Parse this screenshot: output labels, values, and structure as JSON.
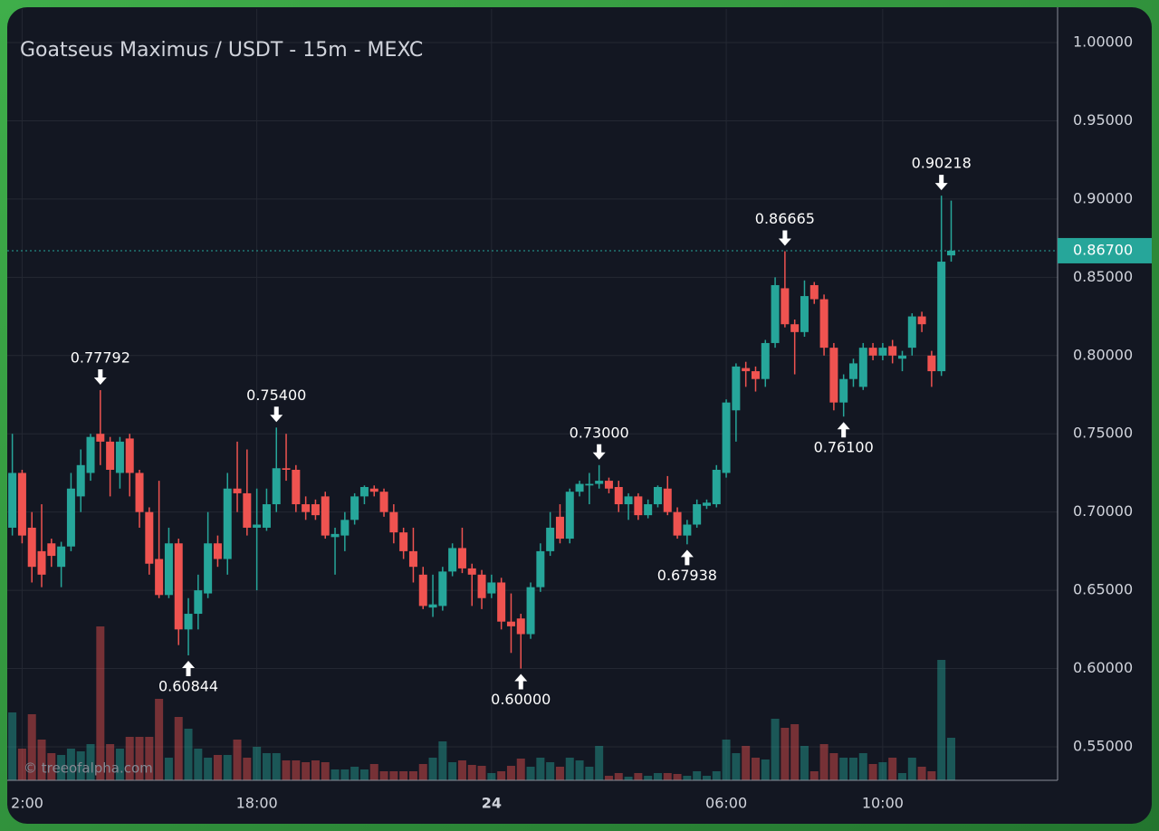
{
  "chart_data": {
    "type": "candlestick",
    "title": "Goatseus Maximus / USDT - 15m - MEXC",
    "watermark": "© treeofalpha.com",
    "x": [
      11.75,
      12,
      12.25,
      12.5,
      12.75,
      13,
      13.25,
      13.5,
      13.75,
      14,
      14.25,
      14.5,
      14.75,
      15,
      15.25,
      15.5,
      15.75,
      16,
      16.25,
      16.5,
      16.75,
      17,
      17.25,
      17.5,
      17.75,
      18,
      18.25,
      18.5,
      18.75,
      19,
      19.25,
      19.5,
      19.75,
      20,
      20.25,
      20.5,
      20.75,
      21,
      21.25,
      21.5,
      21.75,
      22,
      22.25,
      22.5,
      22.75,
      23,
      23.25,
      23.5,
      23.75,
      24,
      24.25,
      24.5,
      24.75,
      25,
      25.25,
      25.5,
      25.75,
      26,
      26.25,
      26.5,
      26.75,
      27,
      27.25,
      27.5,
      27.75,
      28,
      28.25,
      28.5,
      28.75,
      29,
      29.25,
      29.5,
      29.75,
      30,
      30.25,
      30.5,
      30.75,
      31,
      31.25,
      31.5,
      31.75,
      32,
      32.25,
      32.5,
      32.75,
      33,
      33.25,
      33.5,
      33.75,
      34,
      34.25,
      34.5,
      34.75,
      35,
      35.25,
      35.5,
      35.75
    ],
    "open": [
      0.69,
      0.725,
      0.69,
      0.675,
      0.68,
      0.665,
      0.678,
      0.71,
      0.725,
      0.75,
      0.745,
      0.725,
      0.747,
      0.725,
      0.7,
      0.67,
      0.647,
      0.68,
      0.625,
      0.635,
      0.648,
      0.68,
      0.67,
      0.715,
      0.712,
      0.69,
      0.69,
      0.705,
      0.728,
      0.727,
      0.705,
      0.705,
      0.71,
      0.684,
      0.685,
      0.695,
      0.71,
      0.715,
      0.713,
      0.7,
      0.687,
      0.675,
      0.66,
      0.639,
      0.64,
      0.662,
      0.677,
      0.664,
      0.66,
      0.648,
      0.655,
      0.63,
      0.632,
      0.622,
      0.652,
      0.675,
      0.697,
      0.683,
      0.713,
      0.717,
      0.718,
      0.72,
      0.716,
      0.705,
      0.71,
      0.698,
      0.705,
      0.715,
      0.7,
      0.685,
      0.692,
      0.704,
      0.705,
      0.725,
      0.765,
      0.792,
      0.79,
      0.785,
      0.808,
      0.843,
      0.82,
      0.815,
      0.845,
      0.836,
      0.805,
      0.77,
      0.785,
      0.78,
      0.805,
      0.8,
      0.806,
      0.798,
      0.805,
      0.825,
      0.8,
      0.79,
      0.864
    ],
    "high": [
      0.75,
      0.727,
      0.7,
      0.705,
      0.683,
      0.681,
      0.725,
      0.74,
      0.75,
      0.77792,
      0.748,
      0.748,
      0.75,
      0.727,
      0.703,
      0.72,
      0.69,
      0.683,
      0.645,
      0.66,
      0.7,
      0.685,
      0.725,
      0.745,
      0.74,
      0.715,
      0.715,
      0.754,
      0.75,
      0.73,
      0.71,
      0.708,
      0.713,
      0.69,
      0.7,
      0.712,
      0.717,
      0.717,
      0.715,
      0.705,
      0.69,
      0.69,
      0.665,
      0.66,
      0.665,
      0.68,
      0.69,
      0.667,
      0.663,
      0.66,
      0.658,
      0.648,
      0.635,
      0.655,
      0.68,
      0.7,
      0.705,
      0.715,
      0.72,
      0.725,
      0.73,
      0.722,
      0.72,
      0.712,
      0.712,
      0.708,
      0.717,
      0.723,
      0.703,
      0.695,
      0.708,
      0.708,
      0.73,
      0.772,
      0.795,
      0.796,
      0.793,
      0.81,
      0.85,
      0.86665,
      0.823,
      0.848,
      0.847,
      0.839,
      0.808,
      0.788,
      0.798,
      0.808,
      0.808,
      0.808,
      0.81,
      0.803,
      0.827,
      0.828,
      0.803,
      0.90218,
      0.899
    ],
    "low": [
      0.685,
      0.68,
      0.655,
      0.652,
      0.665,
      0.652,
      0.675,
      0.7,
      0.72,
      0.73,
      0.71,
      0.715,
      0.71,
      0.69,
      0.66,
      0.645,
      0.645,
      0.615,
      0.60844,
      0.625,
      0.645,
      0.665,
      0.66,
      0.7,
      0.685,
      0.65,
      0.688,
      0.7,
      0.72,
      0.7,
      0.695,
      0.695,
      0.683,
      0.66,
      0.675,
      0.692,
      0.705,
      0.71,
      0.697,
      0.68,
      0.67,
      0.655,
      0.638,
      0.633,
      0.637,
      0.659,
      0.661,
      0.64,
      0.638,
      0.645,
      0.625,
      0.61,
      0.6,
      0.619,
      0.649,
      0.672,
      0.68,
      0.68,
      0.71,
      0.705,
      0.715,
      0.712,
      0.7,
      0.695,
      0.695,
      0.696,
      0.703,
      0.698,
      0.683,
      0.67938,
      0.69,
      0.702,
      0.703,
      0.722,
      0.745,
      0.78,
      0.777,
      0.78,
      0.805,
      0.818,
      0.788,
      0.812,
      0.833,
      0.8,
      0.765,
      0.761,
      0.78,
      0.778,
      0.797,
      0.797,
      0.795,
      0.79,
      0.8,
      0.815,
      0.78,
      0.787,
      0.86
    ],
    "close": [
      0.725,
      0.685,
      0.665,
      0.66,
      0.672,
      0.678,
      0.715,
      0.73,
      0.748,
      0.745,
      0.727,
      0.745,
      0.725,
      0.7,
      0.667,
      0.647,
      0.68,
      0.625,
      0.635,
      0.65,
      0.68,
      0.67,
      0.715,
      0.712,
      0.69,
      0.692,
      0.705,
      0.728,
      0.727,
      0.705,
      0.7,
      0.698,
      0.685,
      0.686,
      0.695,
      0.71,
      0.716,
      0.713,
      0.7,
      0.687,
      0.675,
      0.665,
      0.64,
      0.641,
      0.662,
      0.677,
      0.664,
      0.66,
      0.645,
      0.655,
      0.63,
      0.627,
      0.622,
      0.652,
      0.675,
      0.69,
      0.683,
      0.713,
      0.718,
      0.718,
      0.72,
      0.715,
      0.705,
      0.71,
      0.698,
      0.705,
      0.716,
      0.7,
      0.685,
      0.692,
      0.705,
      0.706,
      0.727,
      0.77,
      0.793,
      0.79,
      0.785,
      0.808,
      0.845,
      0.82,
      0.815,
      0.838,
      0.836,
      0.805,
      0.77,
      0.785,
      0.795,
      0.805,
      0.8,
      0.805,
      0.8,
      0.8,
      0.825,
      0.82,
      0.79,
      0.86,
      0.867
    ],
    "volume": [
      75,
      35,
      73,
      45,
      30,
      28,
      35,
      32,
      40,
      170,
      40,
      35,
      48,
      48,
      48,
      90,
      25,
      70,
      57,
      35,
      25,
      28,
      28,
      45,
      25,
      37,
      30,
      30,
      22,
      22,
      20,
      22,
      20,
      12,
      12,
      15,
      12,
      18,
      10,
      10,
      10,
      10,
      18,
      25,
      43,
      20,
      22,
      17,
      16,
      8,
      10,
      16,
      24,
      15,
      25,
      20,
      15,
      25,
      22,
      15,
      38,
      5,
      8,
      4,
      8,
      5,
      8,
      8,
      7,
      5,
      10,
      5,
      10,
      45,
      30,
      38,
      25,
      23,
      68,
      58,
      62,
      38,
      10,
      40,
      30,
      25,
      25,
      30,
      18,
      20,
      25,
      8,
      25,
      15,
      10,
      133,
      47
    ],
    "up_color": "#26a69a",
    "down_color": "#ef5350",
    "grid": true,
    "xlim": [
      11.62,
      38.47
    ],
    "xticks": [
      {
        "value": 12,
        "label": "2:00"
      },
      {
        "value": 18,
        "label": "18:00"
      },
      {
        "value": 24,
        "label": "24"
      },
      {
        "value": 30,
        "label": "06:00"
      },
      {
        "value": 34,
        "label": "10:00"
      }
    ],
    "ylim": [
      0.5286,
      1.0214
    ],
    "yticks": [
      {
        "value": 0.55,
        "label": "0.55000"
      },
      {
        "value": 0.6,
        "label": "0.60000"
      },
      {
        "value": 0.65,
        "label": "0.65000"
      },
      {
        "value": 0.7,
        "label": "0.70000"
      },
      {
        "value": 0.75,
        "label": "0.75000"
      },
      {
        "value": 0.8,
        "label": "0.80000"
      },
      {
        "value": 0.85,
        "label": "0.85000"
      },
      {
        "value": 0.9,
        "label": "0.90000"
      },
      {
        "value": 0.95,
        "label": "0.95000"
      },
      {
        "value": 1.0,
        "label": "1.00000"
      }
    ],
    "markers": [
      {
        "x": 14,
        "value": 0.77792,
        "label": "0.77792",
        "position": "high"
      },
      {
        "x": 16.25,
        "value": 0.60844,
        "label": "0.60844",
        "position": "low"
      },
      {
        "x": 18.5,
        "value": 0.754,
        "label": "0.75400",
        "position": "high"
      },
      {
        "x": 24.75,
        "value": 0.6,
        "label": "0.60000",
        "position": "low"
      },
      {
        "x": 26.75,
        "value": 0.73,
        "label": "0.73000",
        "position": "high"
      },
      {
        "x": 29,
        "value": 0.67938,
        "label": "0.67938",
        "position": "low"
      },
      {
        "x": 31.5,
        "value": 0.86665,
        "label": "0.86665",
        "position": "high"
      },
      {
        "x": 33,
        "value": 0.761,
        "label": "0.76100",
        "position": "low"
      },
      {
        "x": 35.5,
        "value": 0.90218,
        "label": "0.90218",
        "position": "high"
      }
    ],
    "last_price": {
      "value": 0.867,
      "label": "0.86700"
    }
  }
}
